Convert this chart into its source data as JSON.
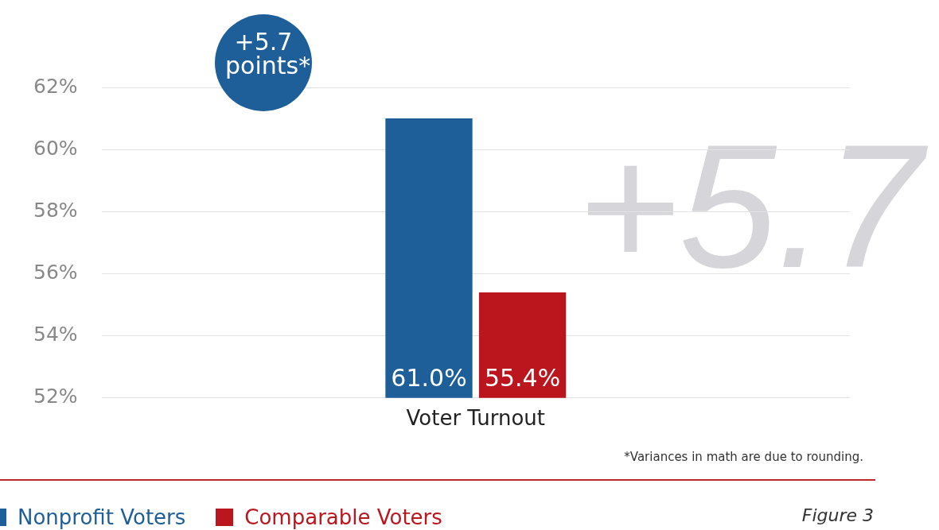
{
  "chart_data": {
    "type": "bar",
    "categories": [
      "Voter Turnout"
    ],
    "series": [
      {
        "name": "Nonprofit Voters",
        "color": "#1f5f99",
        "values": [
          61.0
        ],
        "value_labels": [
          "61.0%"
        ]
      },
      {
        "name": "Comparable Voters",
        "color": "#bb161e",
        "values": [
          55.4
        ],
        "value_labels": [
          "55.4%"
        ]
      }
    ],
    "ylim": [
      52,
      62
    ],
    "yticks": [
      {
        "value": 52,
        "label": "52%"
      },
      {
        "value": 54,
        "label": "54%"
      },
      {
        "value": 56,
        "label": "56%"
      },
      {
        "value": 58,
        "label": "58%"
      },
      {
        "value": 60,
        "label": "60%"
      },
      {
        "value": 62,
        "label": "62%"
      }
    ],
    "grid": "y",
    "legend": "bottom",
    "annotations": [
      "+5.7 points*",
      "+5.7",
      "*Variances in math are due to rounding.",
      "Figure 3"
    ]
  }
}
